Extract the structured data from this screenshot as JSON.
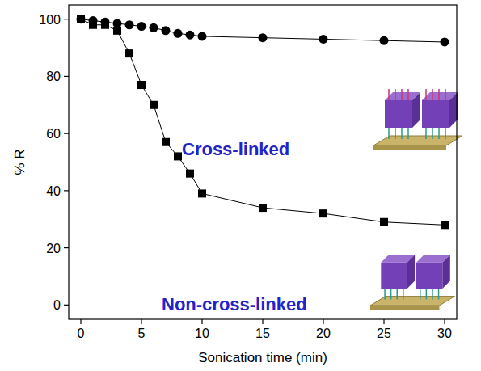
{
  "chart_data": {
    "type": "line",
    "x_label": "Sonication time (min)",
    "y_label": "% R",
    "xlim": [
      -1,
      31
    ],
    "ylim": [
      -5,
      105
    ],
    "xticks": [
      0,
      5,
      10,
      15,
      20,
      25,
      30
    ],
    "yticks": [
      0,
      20,
      40,
      60,
      80,
      100
    ],
    "grid": false,
    "x": [
      0,
      1,
      2,
      3,
      4,
      5,
      6,
      7,
      8,
      9,
      10,
      15,
      20,
      25,
      30
    ],
    "series": [
      {
        "name": "Cross-linked",
        "color": "#000000",
        "marker": "circle",
        "line_style": "solid",
        "values": [
          100,
          99.5,
          99,
          98.5,
          98,
          97.5,
          97,
          96,
          95,
          94.5,
          94,
          93.5,
          93,
          92.5,
          92
        ]
      },
      {
        "name": "Non-cross-linked",
        "color": "#000000",
        "marker": "square",
        "line_style": "solid",
        "values": [
          100,
          98,
          98,
          96,
          88,
          77,
          70,
          57,
          52,
          46,
          39,
          34,
          32,
          29,
          28
        ]
      }
    ],
    "annotations": [
      {
        "text": "Cross-linked",
        "color": "#2323c8"
      },
      {
        "text": "Non-cross-linked",
        "color": "#2323c8"
      }
    ]
  }
}
